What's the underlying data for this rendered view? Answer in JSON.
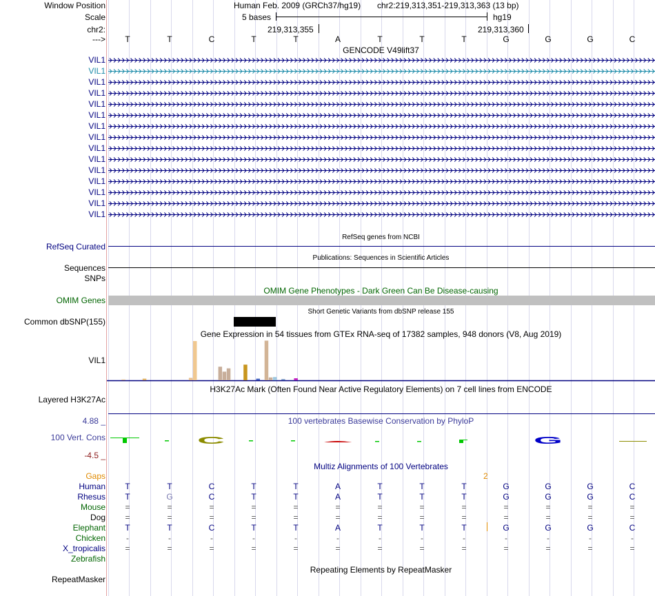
{
  "window_position": {
    "label": "Window Position",
    "assembly": "Human Feb. 2009 (GRCh37/hg19)",
    "range": "chr2:219,313,351-219,313,363 (13 bp)"
  },
  "scale": {
    "label": "Scale",
    "bases_label": "5 bases",
    "db": "hg19"
  },
  "ruler": {
    "chrom_label": "chr2:",
    "tick1": "219,313,355",
    "tick2": "219,313,360",
    "strand_label": "--->"
  },
  "bases": [
    "T",
    "T",
    "C",
    "T",
    "T",
    "A",
    "T",
    "T",
    "T",
    "G",
    "G",
    "G",
    "C"
  ],
  "gencode": {
    "title": "GENCODE V49lift37",
    "rows": [
      "VIL1",
      "VIL1",
      "VIL1",
      "VIL1",
      "VIL1",
      "VIL1",
      "VIL1",
      "VIL1",
      "VIL1",
      "VIL1",
      "VIL1",
      "VIL1",
      "VIL1",
      "VIL1",
      "VIL1"
    ],
    "highlight_row": 1,
    "color": "#000080",
    "highlight_color": "#1a8aa8"
  },
  "refseq": {
    "title": "RefSeq genes from NCBI",
    "label": "RefSeq Curated"
  },
  "publications": {
    "title": "Publications: Sequences in Scientific Articles",
    "label": "Sequences"
  },
  "snps_label": "SNPs",
  "omim": {
    "title": "OMIM Gene Phenotypes - Dark Green Can Be Disease-causing",
    "label": "OMIM Genes"
  },
  "dbsnp": {
    "title": "Short Genetic Variants from dbSNP release 155",
    "label": "Common dbSNP(155)"
  },
  "gtex": {
    "title": "Gene Expression in 54 tissues from GTEx RNA-seq of 17382 samples, 948 donors (V8, Aug 2019)",
    "label": "VIL1",
    "bars": [
      {
        "tissue_index": 3,
        "value": 0.02,
        "color": "#d6b48a"
      },
      {
        "tissue_index": 8,
        "value": 0.04,
        "color": "#e0b060"
      },
      {
        "tissue_index": 19,
        "value": 0.06,
        "color": "#e8c090"
      },
      {
        "tissue_index": 20,
        "value": 0.95,
        "color": "#f0c890"
      },
      {
        "tissue_index": 26,
        "value": 0.33,
        "color": "#c8ae9a"
      },
      {
        "tissue_index": 27,
        "value": 0.21,
        "color": "#c8ae9a"
      },
      {
        "tissue_index": 28,
        "value": 0.29,
        "color": "#c8ae9a"
      },
      {
        "tissue_index": 32,
        "value": 0.38,
        "color": "#c8961e"
      },
      {
        "tissue_index": 35,
        "value": 0.04,
        "color": "#4060c0"
      },
      {
        "tissue_index": 37,
        "value": 0.96,
        "color": "#d2b496"
      },
      {
        "tissue_index": 38,
        "value": 0.07,
        "color": "#c8ae9a"
      },
      {
        "tissue_index": 39,
        "value": 0.08,
        "color": "#9ec8e0"
      },
      {
        "tissue_index": 41,
        "value": 0.03,
        "color": "#7090c0"
      },
      {
        "tissue_index": 44,
        "value": 0.05,
        "color": "#c020c0"
      }
    ]
  },
  "h3k27ac": {
    "title": "H3K27Ac Mark (Often Found Near Active Regulatory Elements) on 7 cell lines from ENCODE",
    "label": "Layered H3K27Ac"
  },
  "conservation": {
    "title": "100 vertebrates Basewise Conservation by PhyloP",
    "label": "100 Vert. Cons",
    "max_label": "4.88 _",
    "min_label": "-4.5 _",
    "logo_C": "C",
    "logo_G": "G",
    "colors": {
      "green": "#00c800",
      "olive": "#8c8c00",
      "red": "#c80000",
      "blue": "#0000c8"
    }
  },
  "multiz": {
    "title": "Multiz Alignments of 100 Vertebrates",
    "gaps_label": "Gaps",
    "gap_marker": "2",
    "species": [
      {
        "name": "Human",
        "color": "#000080",
        "seq": [
          "T",
          "T",
          "C",
          "T",
          "T",
          "A",
          "T",
          "T",
          "T",
          "G",
          "G",
          "G",
          "C"
        ]
      },
      {
        "name": "Rhesus",
        "color": "#000080",
        "seq": [
          "T",
          "G",
          "C",
          "T",
          "T",
          "A",
          "T",
          "T",
          "T",
          "G",
          "G",
          "G",
          "C"
        ]
      },
      {
        "name": "Mouse",
        "color": "#006400",
        "seq": [
          "=",
          "=",
          "=",
          "=",
          "=",
          "=",
          "=",
          "=",
          "=",
          "=",
          "=",
          "=",
          "="
        ]
      },
      {
        "name": "Dog",
        "color": "#000000",
        "seq": [
          "=",
          "=",
          "=",
          "=",
          "=",
          "=",
          "=",
          "=",
          "=",
          "=",
          "=",
          "=",
          "="
        ]
      },
      {
        "name": "Elephant",
        "color": "#006400",
        "seq": [
          "T",
          "T",
          "C",
          "T",
          "T",
          "A",
          "T",
          "T",
          "T",
          "G",
          "G",
          "G",
          "C"
        ]
      },
      {
        "name": "Chicken",
        "color": "#006400",
        "seq": [
          "-",
          "-",
          "-",
          "-",
          "-",
          "-",
          "-",
          "-",
          "-",
          "-",
          "-",
          "-",
          "-"
        ]
      },
      {
        "name": "X_tropicalis",
        "color": "#000080",
        "seq": [
          "=",
          "=",
          "=",
          "=",
          "=",
          "=",
          "=",
          "=",
          "=",
          "=",
          "=",
          "=",
          "="
        ]
      },
      {
        "name": "Zebrafish",
        "color": "#006400",
        "seq": []
      }
    ]
  },
  "repeatmasker": {
    "title": "Repeating Elements by RepeatMasker",
    "label": "RepeatMasker"
  }
}
